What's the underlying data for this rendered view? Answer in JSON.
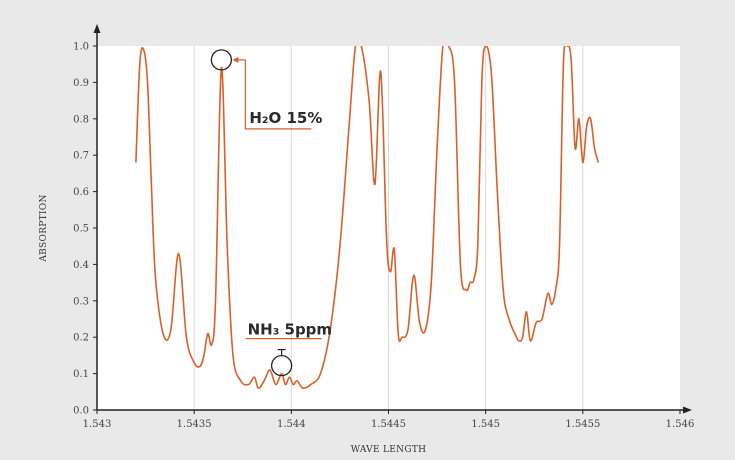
{
  "chart_data": {
    "type": "line",
    "xlabel": "WAVE LENGTH",
    "ylabel": "ABSORPTION",
    "xlim": [
      1.543,
      1.546
    ],
    "ylim": [
      0.0,
      1.0
    ],
    "xticks": [
      "1.543",
      "1.5435",
      "1.544",
      "1.5445",
      "1.545",
      "1.5455",
      "1.546"
    ],
    "yticks": [
      "0.0",
      "0.1",
      "0.2",
      "0.3",
      "0.4",
      "0.5",
      "0.6",
      "0.7",
      "0.8",
      "0.9",
      "1.0"
    ],
    "grid": "vertical",
    "line_color": "#d9602a",
    "series": [
      {
        "x": [
          1.5432,
          1.54322,
          1.54324,
          1.54326,
          1.54328,
          1.5433,
          1.54334,
          1.54338,
          1.54342,
          1.54346,
          1.5435,
          1.54353,
          1.54355,
          1.54357,
          1.54359,
          1.54361,
          1.54364,
          1.54367,
          1.5437,
          1.54374,
          1.54378,
          1.54381,
          1.54383,
          1.54386,
          1.54389,
          1.54392,
          1.54395,
          1.54397,
          1.54399,
          1.54401,
          1.54403,
          1.54406,
          1.5441,
          1.54415,
          1.5442,
          1.54425,
          1.5443,
          1.54433,
          1.54436,
          1.5444,
          1.54443,
          1.54446,
          1.54449,
          1.54451,
          1.54453,
          1.54455,
          1.54457,
          1.5446,
          1.54463,
          1.54466,
          1.54469,
          1.54472,
          1.54475,
          1.54478,
          1.54481,
          1.54484,
          1.54487,
          1.5449,
          1.54492,
          1.54494,
          1.54496,
          1.54498,
          1.545,
          1.54503,
          1.54506,
          1.54509,
          1.54512,
          1.54515,
          1.54517,
          1.54519,
          1.54521,
          1.54523,
          1.54526,
          1.54529,
          1.54532,
          1.54534,
          1.54536,
          1.54538,
          1.5454,
          1.54542,
          1.54544,
          1.54546,
          1.54548,
          1.5455,
          1.54552,
          1.54554,
          1.54556,
          1.54558
        ],
        "y": [
          0.68,
          0.95,
          0.99,
          0.9,
          0.62,
          0.37,
          0.21,
          0.22,
          0.43,
          0.2,
          0.13,
          0.12,
          0.15,
          0.21,
          0.18,
          0.3,
          0.94,
          0.45,
          0.15,
          0.08,
          0.07,
          0.09,
          0.06,
          0.08,
          0.11,
          0.07,
          0.1,
          0.07,
          0.09,
          0.07,
          0.08,
          0.06,
          0.07,
          0.1,
          0.22,
          0.45,
          0.8,
          1.0,
          1.0,
          0.85,
          0.62,
          0.93,
          0.47,
          0.38,
          0.44,
          0.21,
          0.2,
          0.22,
          0.37,
          0.24,
          0.22,
          0.35,
          0.72,
          1.0,
          1.0,
          0.9,
          0.4,
          0.33,
          0.35,
          0.36,
          0.46,
          0.9,
          1.0,
          0.92,
          0.6,
          0.33,
          0.25,
          0.21,
          0.19,
          0.2,
          0.27,
          0.19,
          0.24,
          0.25,
          0.32,
          0.29,
          0.33,
          0.45,
          0.95,
          1.0,
          0.96,
          0.72,
          0.8,
          0.68,
          0.78,
          0.8,
          0.72,
          0.68
        ]
      }
    ],
    "annotations": [
      {
        "text": "H₂O 15%",
        "x": 1.54364,
        "y": 0.94
      },
      {
        "text": "NH₃ 5ppm",
        "x": 1.54395,
        "y": 0.1
      }
    ]
  }
}
